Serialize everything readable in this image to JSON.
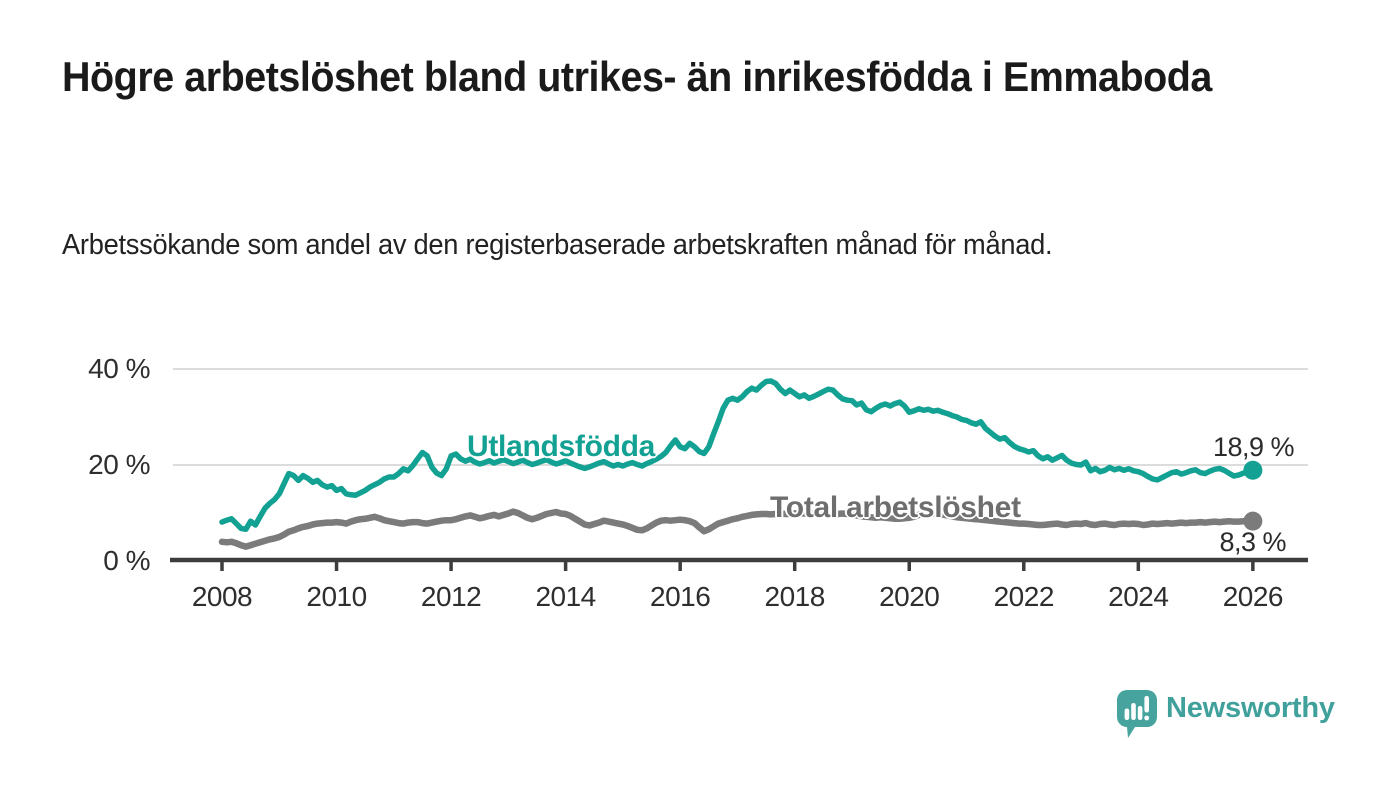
{
  "header": {
    "title": "Högre arbetslöshet bland utrikes- än inrikesfödda i Emmaboda",
    "subtitle": "Arbetssökande som andel av den registerbaserade arbetskraften månad för månad."
  },
  "chart_data": {
    "type": "line",
    "unit": "%",
    "frequency": "monthly",
    "x_start": "2008-01",
    "x_end": "2026-01",
    "ylim": [
      0,
      42
    ],
    "grid": "horizontal",
    "x_tick_years": [
      2008,
      2010,
      2012,
      2014,
      2016,
      2018,
      2020,
      2022,
      2024,
      2026
    ],
    "y_ticks": [
      {
        "value": 0,
        "label": "0 %"
      },
      {
        "value": 20,
        "label": "20 %"
      },
      {
        "value": 40,
        "label": "40 %"
      }
    ],
    "series": [
      {
        "name": "Utlandsfödda",
        "color": "#12a192",
        "end_value": 18.9,
        "end_label": "18,9 %",
        "values": [
          8.1,
          8.5,
          8.8,
          7.8,
          6.8,
          6.6,
          8.3,
          7.5,
          9.3,
          11.0,
          12.0,
          12.8,
          14.0,
          16.1,
          18.2,
          17.8,
          16.8,
          17.8,
          17.2,
          16.4,
          16.8,
          15.9,
          15.4,
          15.7,
          14.7,
          15.1,
          14.0,
          13.8,
          13.7,
          14.2,
          14.7,
          15.4,
          15.9,
          16.4,
          17.1,
          17.5,
          17.5,
          18.2,
          19.2,
          18.8,
          19.9,
          21.3,
          22.6,
          21.9,
          19.5,
          18.3,
          17.8,
          19.2,
          21.9,
          22.3,
          21.3,
          20.8,
          21.2,
          20.6,
          20.2,
          20.5,
          20.9,
          20.4,
          20.8,
          21.1,
          20.7,
          20.3,
          20.6,
          21.0,
          20.5,
          20.1,
          20.4,
          20.8,
          21.1,
          20.6,
          20.2,
          20.5,
          20.9,
          20.4,
          20.0,
          19.6,
          19.3,
          19.6,
          20.0,
          20.4,
          20.7,
          20.2,
          19.8,
          20.1,
          19.8,
          20.2,
          20.5,
          20.1,
          19.8,
          20.3,
          20.7,
          21.2,
          21.8,
          22.6,
          24.0,
          25.2,
          23.8,
          23.4,
          24.5,
          23.8,
          22.8,
          22.4,
          23.8,
          26.5,
          29.0,
          31.8,
          33.5,
          33.9,
          33.5,
          34.2,
          35.3,
          36.0,
          35.6,
          36.6,
          37.4,
          37.5,
          37.0,
          35.8,
          34.9,
          35.6,
          34.9,
          34.2,
          34.6,
          33.9,
          34.3,
          34.8,
          35.3,
          35.8,
          35.6,
          34.6,
          33.8,
          33.5,
          33.4,
          32.5,
          32.9,
          31.5,
          31.1,
          31.8,
          32.4,
          32.7,
          32.3,
          32.8,
          33.1,
          32.3,
          31.0,
          31.3,
          31.7,
          31.4,
          31.6,
          31.2,
          31.4,
          31.0,
          30.7,
          30.3,
          30.0,
          29.5,
          29.3,
          28.8,
          28.5,
          29.0,
          27.6,
          26.8,
          26.0,
          25.4,
          25.7,
          24.7,
          23.9,
          23.4,
          23.1,
          22.7,
          23.0,
          21.9,
          21.3,
          21.7,
          21.0,
          21.5,
          22.0,
          21.0,
          20.4,
          20.1,
          20.0,
          20.6,
          18.8,
          19.3,
          18.6,
          18.9,
          19.5,
          19.0,
          19.3,
          18.9,
          19.2,
          18.8,
          18.6,
          18.2,
          17.6,
          17.1,
          16.9,
          17.4,
          17.9,
          18.4,
          18.6,
          18.1,
          18.4,
          18.8,
          19.0,
          18.4,
          18.2,
          18.7,
          19.1,
          19.3,
          18.9,
          18.3,
          17.7,
          17.9,
          18.3,
          18.6,
          18.9
        ]
      },
      {
        "name": "Total arbetslöshet",
        "color": "#7b7b7b",
        "end_value": 8.3,
        "end_label": "8,3 %",
        "values": [
          4.0,
          3.9,
          4.0,
          3.7,
          3.3,
          3.0,
          3.3,
          3.6,
          3.9,
          4.2,
          4.5,
          4.7,
          5.0,
          5.5,
          6.1,
          6.4,
          6.8,
          7.1,
          7.3,
          7.6,
          7.8,
          7.9,
          8.0,
          8.0,
          8.1,
          8.0,
          7.8,
          8.2,
          8.5,
          8.7,
          8.8,
          9.0,
          9.2,
          8.9,
          8.5,
          8.3,
          8.1,
          7.9,
          7.8,
          8.0,
          8.1,
          8.1,
          7.9,
          7.8,
          8.0,
          8.2,
          8.4,
          8.5,
          8.5,
          8.7,
          9.0,
          9.3,
          9.5,
          9.2,
          8.9,
          9.1,
          9.4,
          9.6,
          9.3,
          9.6,
          9.9,
          10.3,
          10.0,
          9.5,
          9.0,
          8.7,
          9.0,
          9.4,
          9.8,
          10.0,
          10.2,
          9.9,
          9.8,
          9.4,
          8.8,
          8.2,
          7.6,
          7.4,
          7.7,
          8.0,
          8.4,
          8.2,
          8.0,
          7.8,
          7.6,
          7.3,
          6.9,
          6.5,
          6.4,
          6.8,
          7.4,
          8.0,
          8.4,
          8.5,
          8.4,
          8.5,
          8.6,
          8.5,
          8.3,
          7.9,
          7.0,
          6.2,
          6.6,
          7.2,
          7.8,
          8.1,
          8.4,
          8.7,
          8.9,
          9.2,
          9.4,
          9.6,
          9.7,
          9.8,
          9.8,
          9.7,
          9.8,
          9.9,
          9.8,
          9.8,
          9.9,
          10.0,
          9.9,
          9.8,
          9.9,
          10.0,
          10.1,
          10.0,
          9.9,
          9.8,
          9.9,
          9.8,
          9.7,
          9.5,
          9.3,
          9.2,
          9.1,
          9.0,
          9.1,
          9.0,
          8.9,
          8.8,
          8.8,
          8.9,
          9.0,
          9.2,
          9.6,
          9.9,
          10.1,
          10.0,
          9.9,
          9.7,
          9.5,
          9.3,
          9.1,
          9.0,
          8.9,
          8.8,
          8.7,
          8.6,
          8.5,
          8.4,
          8.3,
          8.2,
          8.1,
          8.0,
          7.9,
          7.8,
          7.8,
          7.7,
          7.6,
          7.5,
          7.5,
          7.6,
          7.7,
          7.8,
          7.6,
          7.5,
          7.7,
          7.8,
          7.7,
          7.9,
          7.6,
          7.5,
          7.7,
          7.8,
          7.6,
          7.5,
          7.7,
          7.8,
          7.7,
          7.8,
          7.7,
          7.5,
          7.6,
          7.8,
          7.7,
          7.8,
          7.9,
          7.8,
          7.9,
          8.0,
          7.9,
          8.0,
          8.0,
          8.1,
          8.0,
          8.1,
          8.2,
          8.1,
          8.2,
          8.3,
          8.2,
          8.2,
          8.3,
          8.3,
          8.3
        ]
      }
    ]
  },
  "footer": {
    "brand": "Newsworthy"
  },
  "colors": {
    "accent_teal": "#12a192",
    "line_gray": "#7b7b7b",
    "axis": "#3d3d3d",
    "gridline": "#dcdcdc",
    "logo_teal": "#46a39e"
  }
}
